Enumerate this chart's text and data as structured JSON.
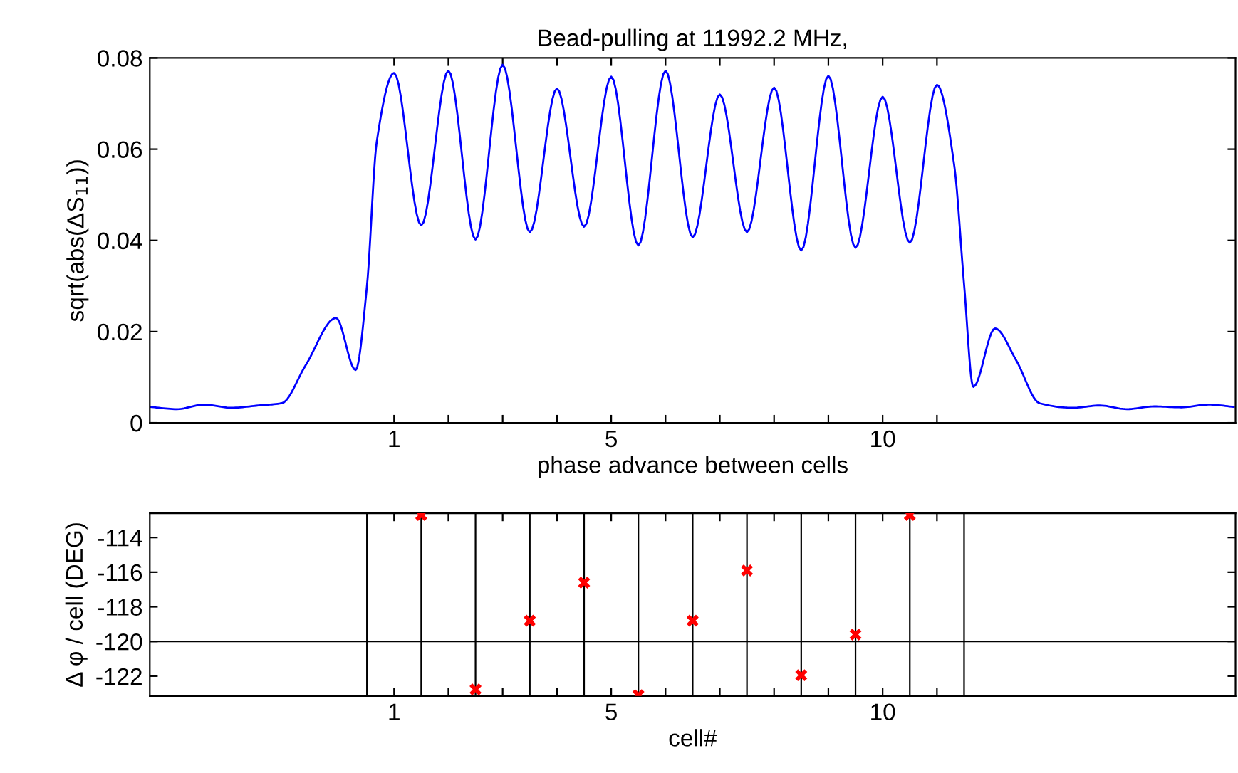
{
  "chart_data": [
    {
      "type": "line",
      "title": "Bead-pulling at 11992.2 MHz,",
      "xlabel": "phase advance between cells",
      "ylabel": "sqrt(abs(ΔS$_{11}$))",
      "series": [
        {
          "color": "#0000ff",
          "x": [
            -3.5,
            -3.0,
            -2.5,
            -2.0,
            -1.5,
            -1.07,
            -0.63,
            -0.07,
            0.29,
            0.5,
            0.68,
            1,
            1.5,
            2,
            2.5,
            3,
            3.5,
            4,
            4.5,
            5,
            5.5,
            6,
            6.5,
            7,
            7.5,
            8,
            8.5,
            9,
            9.5,
            10,
            10.5,
            11,
            11.32,
            11.5,
            11.67,
            12.07,
            12.46,
            12.89,
            13.5,
            14,
            14.5,
            15,
            15.5,
            16,
            16.47
          ],
          "values": [
            0.0035,
            0.003,
            0.004,
            0.0033,
            0.0038,
            0.0043,
            0.0126,
            0.023,
            0.0116,
            0.03,
            0.0616,
            0.0767,
            0.0433,
            0.0772,
            0.0402,
            0.0785,
            0.0418,
            0.0733,
            0.043,
            0.0759,
            0.0389,
            0.0772,
            0.0407,
            0.072,
            0.0418,
            0.0735,
            0.0378,
            0.0761,
            0.0384,
            0.0715,
            0.0395,
            0.0741,
            0.0563,
            0.0303,
            0.0079,
            0.0207,
            0.0137,
            0.0043,
            0.0033,
            0.0038,
            0.003,
            0.0036,
            0.0034,
            0.004,
            0.0035
          ]
        }
      ],
      "marker": "none",
      "line_style": "solid",
      "grid": false,
      "xlim": [
        -3.5,
        16.5
      ],
      "xticks": [
        1,
        {
          "value": 2,
          "label": null
        },
        {
          "value": 3,
          "label": null
        },
        {
          "value": 4,
          "label": null
        },
        5,
        {
          "value": 6,
          "label": null
        },
        {
          "value": 7,
          "label": null
        },
        {
          "value": 8,
          "label": null
        },
        {
          "value": 9,
          "label": null
        },
        10,
        {
          "value": 11,
          "label": null
        }
      ],
      "ylim": [
        0,
        0.08
      ],
      "yticks": [
        0,
        0.02,
        0.04,
        0.06,
        0.08
      ]
    },
    {
      "type": "scatter",
      "xlabel": "cell#",
      "ylabel": "Δ φ / cell (DEG)",
      "series": [
        {
          "color": "#ff0000",
          "x": [
            1.5,
            2.5,
            3.5,
            4.5,
            5.5,
            6.5,
            7.5,
            8.5,
            9.5,
            10.5
          ],
          "values": [
            -112.7,
            -122.77,
            -118.8,
            -116.6,
            -123.1,
            -118.8,
            -115.9,
            -121.95,
            -119.6,
            -112.7
          ]
        }
      ],
      "marker": "cross",
      "grid": false,
      "ref_lines": [
        {
          "axis": "y",
          "value": -120,
          "color": "#000000"
        },
        {
          "axis": "x",
          "value": 0.5,
          "color": "#000000"
        },
        {
          "axis": "x",
          "value": 1.5,
          "color": "#000000"
        },
        {
          "axis": "x",
          "value": 2.5,
          "color": "#000000"
        },
        {
          "axis": "x",
          "value": 3.5,
          "color": "#000000"
        },
        {
          "axis": "x",
          "value": 4.5,
          "color": "#000000"
        },
        {
          "axis": "x",
          "value": 5.5,
          "color": "#000000"
        },
        {
          "axis": "x",
          "value": 6.5,
          "color": "#000000"
        },
        {
          "axis": "x",
          "value": 7.5,
          "color": "#000000"
        },
        {
          "axis": "x",
          "value": 8.5,
          "color": "#000000"
        },
        {
          "axis": "x",
          "value": 9.5,
          "color": "#000000"
        },
        {
          "axis": "x",
          "value": 10.5,
          "color": "#000000"
        },
        {
          "axis": "x",
          "value": 11.5,
          "color": "#000000"
        }
      ],
      "xlim": [
        -3.5,
        16.5
      ],
      "xticks": [
        1,
        {
          "value": 2,
          "label": null
        },
        {
          "value": 3,
          "label": null
        },
        {
          "value": 4,
          "label": null
        },
        5,
        {
          "value": 6,
          "label": null
        },
        {
          "value": 7,
          "label": null
        },
        {
          "value": 8,
          "label": null
        },
        {
          "value": 9,
          "label": null
        },
        10,
        {
          "value": 11,
          "label": null
        }
      ],
      "ylim": [
        -123.15,
        -112.6
      ],
      "yticks": [
        -122,
        -120,
        -118,
        -116,
        -114
      ]
    }
  ]
}
